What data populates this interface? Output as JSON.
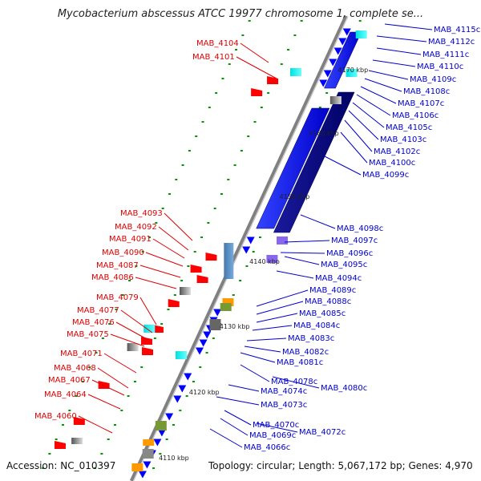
{
  "title": "Mycobacterium abscessus ATCC 19977 chromosome 1, complete se...",
  "footer": {
    "accession": "Accession: NC_010397",
    "topology": "Topology: circular; Length: 5,067,172 bp; Genes: 4,970"
  },
  "colors": {
    "left_label": "#dd0000",
    "right_label": "#0000cc",
    "forward_gene": "#ff0000",
    "reverse_gene": "#0000ff",
    "reverse_dark": "#000080",
    "backbone": "#808080",
    "tick_green": "#009900"
  },
  "scale_labels": [
    "4170 kbp",
    "4160 kbp",
    "4150 kbp",
    "4140 kbp",
    "4130 kbp",
    "4120 kbp",
    "4110 kbp"
  ],
  "left_labels": [
    "MAB_4104",
    "MAB_4101",
    "MAB_4093",
    "MAB_4092",
    "MAB_4091",
    "MAB_4090",
    "MAB_4087",
    "MAB_4086",
    "MAB_4079",
    "MAB_4077",
    "MAB_4076",
    "MAB_4075",
    "MAB_4071",
    "MAB_4068",
    "MAB_4067",
    "MAB_4064",
    "MAB_4060"
  ],
  "right_labels": [
    "MAB_4115c",
    "MAB_4112c",
    "MAB_4111c",
    "MAB_4110c",
    "MAB_4109c",
    "MAB_4108c",
    "MAB_4107c",
    "MAB_4106c",
    "MAB_4105c",
    "MAB_4103c",
    "MAB_4102c",
    "MAB_4100c",
    "MAB_4099c",
    "MAB_4098c",
    "MAB_4097c",
    "MAB_4096c",
    "MAB_4095c",
    "MAB_4094c",
    "MAB_4089c",
    "MAB_4088c",
    "MAB_4085c",
    "MAB_4084c",
    "MAB_4083c",
    "MAB_4082c",
    "MAB_4081c",
    "MAB_4078c",
    "MAB_4080c",
    "MAB_4074c",
    "MAB_4073c",
    "MAB_4070c",
    "MAB_4072c",
    "MAB_4069c",
    "MAB_4066c"
  ]
}
